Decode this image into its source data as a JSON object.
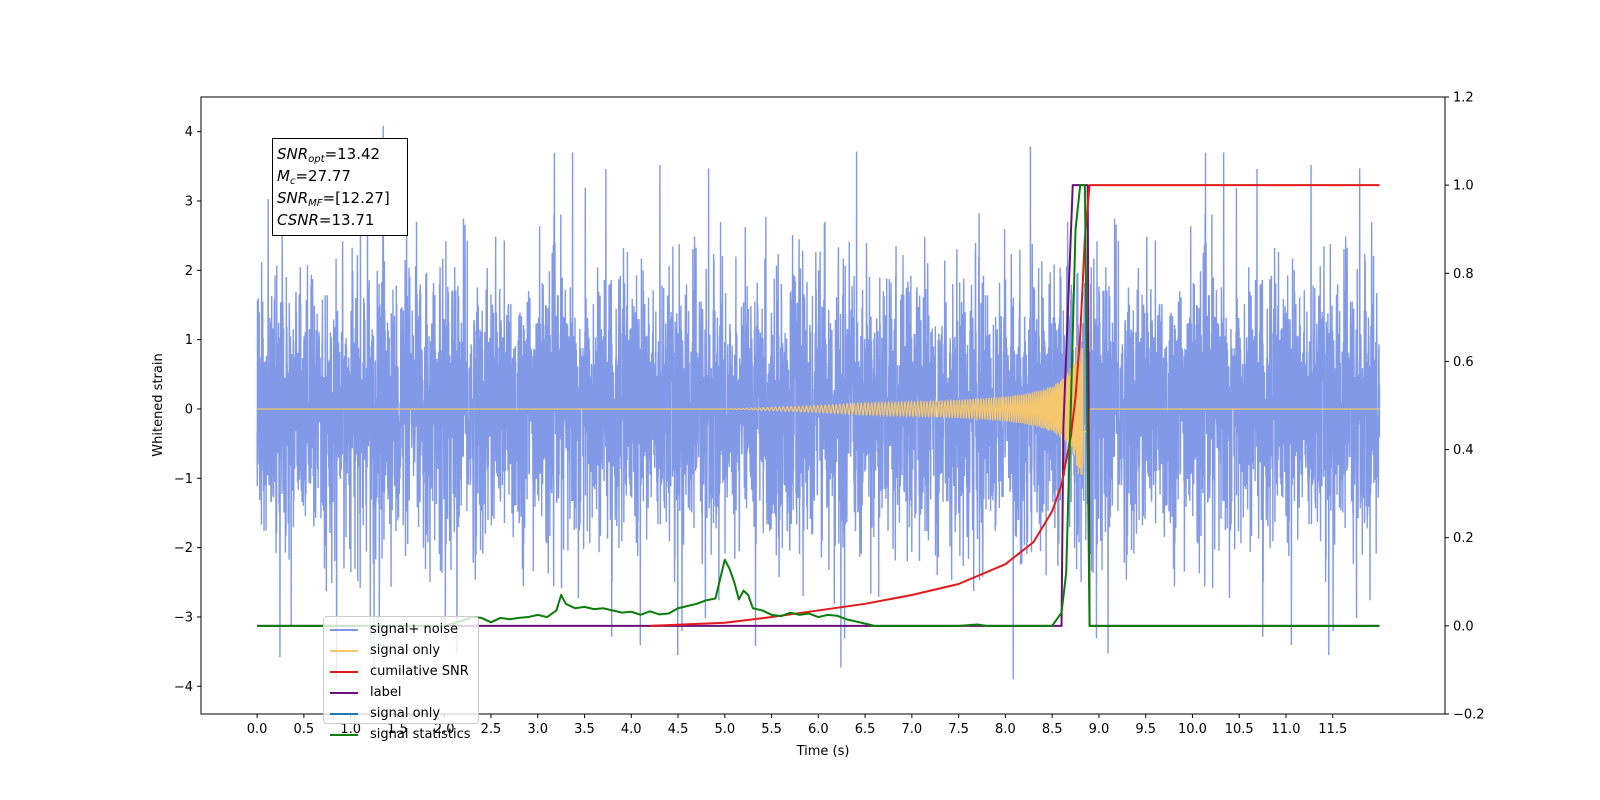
{
  "chart_data": {
    "type": "line",
    "xlabel": "Time (s)",
    "ylabel": "Whitened strain",
    "xlim": [
      -0.6,
      12.7
    ],
    "ylim": [
      -4.4,
      4.5
    ],
    "y2lim": [
      -0.2,
      1.2
    ],
    "x_ticks": [
      "0.0",
      "0.5",
      "1.0",
      "1.5",
      "2.0",
      "2.5",
      "3.0",
      "3.5",
      "4.0",
      "4.5",
      "5.0",
      "5.5",
      "6.0",
      "6.5",
      "7.0",
      "7.5",
      "8.0",
      "8.5",
      "9.0",
      "9.5",
      "10.0",
      "10.5",
      "11.0",
      "11.5"
    ],
    "y_ticks": [
      "4",
      "3",
      "2",
      "1",
      "0",
      "−1",
      "−2",
      "−3",
      "−4"
    ],
    "y2_ticks": [
      "1.2",
      "1.0",
      "0.8",
      "0.6",
      "0.4",
      "0.2",
      "0.0",
      "−0.2"
    ],
    "annotation": {
      "snr_opt": "=13.42",
      "mc": "=27.77",
      "snr_mf": "=[12.27]",
      "csnr": "=13.71"
    },
    "series": [
      {
        "name": "signal+ noise",
        "color": "#7b94e6",
        "axis": "left",
        "envelope": {
          "x_range": [
            0.0,
            12.0
          ],
          "typical_abs": 2.3,
          "max": 4.1,
          "min": -3.9
        }
      },
      {
        "name": "signal only",
        "color": "#f5c76e",
        "axis": "left",
        "chirp": {
          "x_start": 5.0,
          "merger_time": 8.85,
          "peak_amplitude": 0.95,
          "cutoff": 8.9
        }
      },
      {
        "name": "cumilative SNR",
        "color": "#e31a1c",
        "axis": "right",
        "x": [
          4.2,
          5.0,
          5.5,
          6.0,
          6.5,
          7.0,
          7.5,
          8.0,
          8.3,
          8.5,
          8.6,
          8.7,
          8.75,
          8.8,
          8.85,
          8.9,
          9.0,
          12.0
        ],
        "values": [
          0.0,
          0.007,
          0.02,
          0.035,
          0.05,
          0.07,
          0.095,
          0.14,
          0.19,
          0.26,
          0.32,
          0.43,
          0.52,
          0.66,
          0.88,
          1.0,
          1.0,
          1.0
        ]
      },
      {
        "name": "label",
        "color": "#6b0f7a",
        "axis": "right",
        "x": [
          0.0,
          8.6,
          8.62,
          8.72,
          8.88,
          8.9,
          12.0
        ],
        "values": [
          0.0,
          0.0,
          0.45,
          1.0,
          1.0,
          0.0,
          0.0
        ]
      },
      {
        "name": "signal only",
        "color": "#1f77b4",
        "axis": "right",
        "hidden": true
      },
      {
        "name": "signal statistics",
        "color": "#0a7d0a",
        "axis": "right",
        "x": [
          0.0,
          2.0,
          2.2,
          2.3,
          2.4,
          2.5,
          2.6,
          2.7,
          2.8,
          2.9,
          3.0,
          3.1,
          3.2,
          3.25,
          3.3,
          3.4,
          3.5,
          3.6,
          3.7,
          3.8,
          3.9,
          4.0,
          4.1,
          4.2,
          4.3,
          4.4,
          4.5,
          4.6,
          4.7,
          4.8,
          4.9,
          5.0,
          5.05,
          5.1,
          5.15,
          5.2,
          5.25,
          5.3,
          5.4,
          5.5,
          5.6,
          5.7,
          5.8,
          5.9,
          6.0,
          6.1,
          6.2,
          6.3,
          6.4,
          6.5,
          6.6,
          7.0,
          7.5,
          7.7,
          7.8,
          8.0,
          8.5,
          8.6,
          8.65,
          8.7,
          8.75,
          8.8,
          8.85,
          8.9,
          8.95,
          12.0
        ],
        "values": [
          0.0,
          0.0,
          0.012,
          0.02,
          0.018,
          0.008,
          0.018,
          0.015,
          0.018,
          0.02,
          0.025,
          0.02,
          0.035,
          0.07,
          0.05,
          0.04,
          0.043,
          0.038,
          0.04,
          0.035,
          0.03,
          0.032,
          0.025,
          0.033,
          0.026,
          0.028,
          0.04,
          0.045,
          0.05,
          0.058,
          0.062,
          0.15,
          0.13,
          0.1,
          0.06,
          0.08,
          0.07,
          0.04,
          0.035,
          0.025,
          0.022,
          0.03,
          0.025,
          0.028,
          0.02,
          0.025,
          0.023,
          0.015,
          0.01,
          0.005,
          0.0,
          0.0,
          0.0,
          0.003,
          0.0,
          0.0,
          0.0,
          0.03,
          0.12,
          0.5,
          0.9,
          1.0,
          1.0,
          0.0,
          0.0,
          0.0
        ]
      }
    ]
  },
  "legend": {
    "items": [
      {
        "label": "signal+ noise",
        "color": "#7b94e6"
      },
      {
        "label": "signal only",
        "color": "#f5c76e"
      },
      {
        "label": "cumilative SNR",
        "color": "#e31a1c"
      },
      {
        "label": "label",
        "color": "#6b0f7a"
      },
      {
        "label": "signal only",
        "color": "#1f77b4"
      },
      {
        "label": "signal statistics",
        "color": "#0a7d0a"
      }
    ]
  }
}
